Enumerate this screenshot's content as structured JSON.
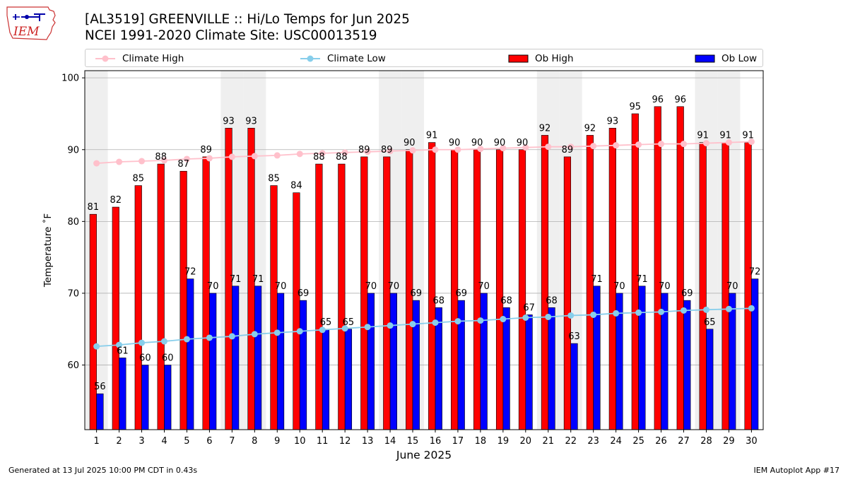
{
  "title": "[AL3519] GREENVILLE :: Hi/Lo Temps for Jun 2025",
  "subtitle": "NCEI 1991-2020 Climate Site: USC00013519",
  "logo_text": "IEM",
  "footer_left": "Generated at 13 Jul 2025 10:00 PM CDT in 0.43s",
  "footer_right": "IEM Autoplot App #17",
  "colors": {
    "ob_high": "#ff0000",
    "ob_low": "#0000ff",
    "climate_high": "#ffc0cb",
    "climate_low": "#87ceeb",
    "weekend_shade": "#efefef",
    "grid": "#b0b0b0"
  },
  "legend": [
    {
      "label": "Climate High",
      "kind": "line",
      "color": "#ffc0cb"
    },
    {
      "label": "Climate Low",
      "kind": "line",
      "color": "#87ceeb"
    },
    {
      "label": "Ob High",
      "kind": "box",
      "color": "#ff0000"
    },
    {
      "label": "Ob Low",
      "kind": "box",
      "color": "#0000ff"
    }
  ],
  "chart_data": {
    "type": "bar",
    "xlabel": "June 2025",
    "ylabel": "Temperature ˚F",
    "ylim": [
      51,
      101
    ],
    "yticks": [
      60,
      70,
      80,
      90,
      100
    ],
    "grid": true,
    "legend_position": "top",
    "categories": [
      "1",
      "2",
      "3",
      "4",
      "5",
      "6",
      "7",
      "8",
      "9",
      "10",
      "11",
      "12",
      "13",
      "14",
      "15",
      "16",
      "17",
      "18",
      "19",
      "20",
      "21",
      "22",
      "23",
      "24",
      "25",
      "26",
      "27",
      "28",
      "29",
      "30"
    ],
    "shaded_days": [
      1,
      7,
      8,
      14,
      15,
      21,
      22,
      28,
      29
    ],
    "series": [
      {
        "name": "Ob High",
        "type": "bar",
        "values": [
          81,
          82,
          85,
          88,
          87,
          89,
          93,
          93,
          85,
          84,
          88,
          88,
          89,
          89,
          90,
          91,
          90,
          90,
          90,
          90,
          92,
          89,
          92,
          93,
          95,
          96,
          96,
          91,
          91,
          91
        ]
      },
      {
        "name": "Ob Low",
        "type": "bar",
        "values": [
          56,
          61,
          60,
          60,
          72,
          70,
          71,
          71,
          70,
          69,
          65,
          65,
          70,
          70,
          69,
          68,
          69,
          70,
          68,
          67,
          68,
          63,
          71,
          70,
          71,
          70,
          69,
          65,
          70,
          72
        ]
      },
      {
        "name": "Climate High",
        "type": "line",
        "values": [
          88.1,
          88.3,
          88.4,
          88.5,
          88.7,
          88.8,
          89.0,
          89.1,
          89.2,
          89.4,
          89.5,
          89.6,
          89.7,
          89.8,
          89.9,
          90.0,
          90.0,
          90.1,
          90.2,
          90.3,
          90.4,
          90.4,
          90.5,
          90.6,
          90.7,
          90.8,
          90.8,
          90.9,
          91.0,
          91.1
        ]
      },
      {
        "name": "Climate Low",
        "type": "line",
        "values": [
          62.6,
          62.8,
          63.1,
          63.3,
          63.6,
          63.8,
          64.0,
          64.3,
          64.5,
          64.7,
          64.9,
          65.1,
          65.3,
          65.5,
          65.7,
          65.9,
          66.1,
          66.2,
          66.4,
          66.6,
          66.7,
          66.9,
          67.0,
          67.2,
          67.3,
          67.4,
          67.6,
          67.7,
          67.8,
          67.9
        ]
      }
    ]
  }
}
